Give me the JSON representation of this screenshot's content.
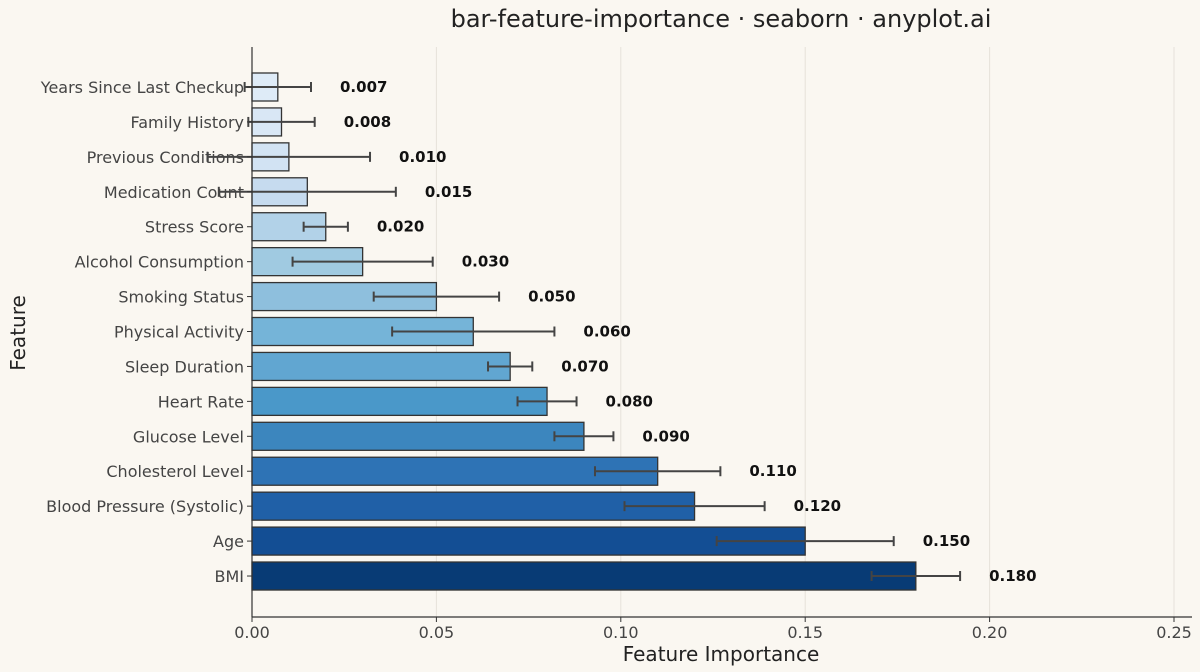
{
  "chart_data": {
    "type": "bar",
    "orientation": "horizontal",
    "title": "bar-feature-importance · seaborn · anyplot.ai",
    "xlabel": "Feature Importance",
    "ylabel": "Feature",
    "xlim": [
      0,
      0.25
    ],
    "xticks": [
      0.0,
      0.05,
      0.1,
      0.15,
      0.2,
      0.25
    ],
    "xtick_labels": [
      "0.00",
      "0.05",
      "0.10",
      "0.15",
      "0.20",
      "0.25"
    ],
    "grid": "vertical",
    "categories": [
      "Years Since Last Checkup",
      "Family History",
      "Previous Conditions",
      "Medication Count",
      "Stress Score",
      "Alcohol Consumption",
      "Smoking Status",
      "Physical Activity",
      "Sleep Duration",
      "Heart Rate",
      "Glucose Level",
      "Cholesterol Level",
      "Blood Pressure (Systolic)",
      "Age",
      "BMI"
    ],
    "values": [
      0.007,
      0.008,
      0.01,
      0.015,
      0.02,
      0.03,
      0.05,
      0.06,
      0.07,
      0.08,
      0.09,
      0.11,
      0.12,
      0.15,
      0.18
    ],
    "error": [
      0.009,
      0.009,
      0.022,
      0.024,
      0.006,
      0.019,
      0.017,
      0.022,
      0.006,
      0.008,
      0.008,
      0.017,
      0.019,
      0.024,
      0.012
    ],
    "value_labels": [
      "0.007",
      "0.008",
      "0.010",
      "0.015",
      "0.020",
      "0.030",
      "0.050",
      "0.060",
      "0.070",
      "0.080",
      "0.090",
      "0.110",
      "0.120",
      "0.150",
      "0.180"
    ],
    "colors": [
      "#DEEBF7",
      "#D9E7F5",
      "#D2E3F3",
      "#C6DBEF",
      "#B2D2E8",
      "#A0CAE1",
      "#8EBFDD",
      "#75B4D8",
      "#61A6D1",
      "#4A98C9",
      "#3C86BE",
      "#2E73B5",
      "#2060A7",
      "#134E94",
      "#083B75"
    ],
    "bar_edge_color": "#333333",
    "error_color": "#444444",
    "background": "#FAF7F1"
  }
}
